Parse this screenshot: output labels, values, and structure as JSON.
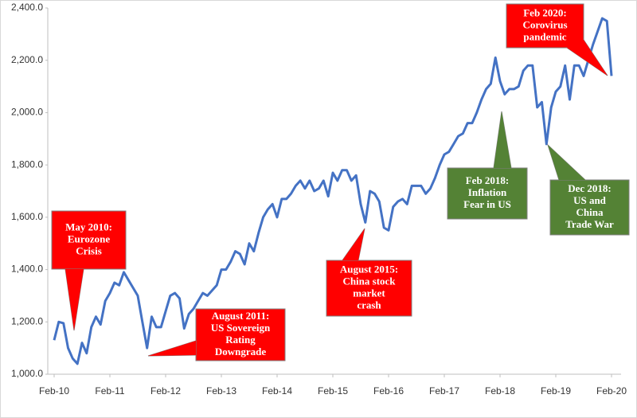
{
  "chart_data": {
    "type": "line",
    "categories": [
      "Feb-10",
      null,
      null,
      null,
      null,
      null,
      null,
      null,
      null,
      null,
      null,
      null,
      "Feb-11",
      null,
      null,
      null,
      null,
      null,
      null,
      null,
      null,
      null,
      null,
      null,
      "Feb-12",
      null,
      null,
      null,
      null,
      null,
      null,
      null,
      null,
      null,
      null,
      null,
      "Feb-13",
      null,
      null,
      null,
      null,
      null,
      null,
      null,
      null,
      null,
      null,
      null,
      "Feb-14",
      null,
      null,
      null,
      null,
      null,
      null,
      null,
      null,
      null,
      null,
      null,
      "Feb-15",
      null,
      null,
      null,
      null,
      null,
      null,
      null,
      null,
      null,
      null,
      null,
      "Feb-16",
      null,
      null,
      null,
      null,
      null,
      null,
      null,
      null,
      null,
      null,
      null,
      "Feb-17",
      null,
      null,
      null,
      null,
      null,
      null,
      null,
      null,
      null,
      null,
      null,
      "Feb-18",
      null,
      null,
      null,
      null,
      null,
      null,
      null,
      null,
      null,
      null,
      null,
      "Feb-19",
      null,
      null,
      null,
      null,
      null,
      null,
      null,
      null,
      null,
      null,
      null,
      "Feb-20"
    ],
    "values": [
      1130,
      1200,
      1195,
      1100,
      1060,
      1040,
      1120,
      1080,
      1180,
      1220,
      1190,
      1280,
      1310,
      1350,
      1340,
      1390,
      1360,
      1330,
      1300,
      1200,
      1100,
      1220,
      1180,
      1180,
      1240,
      1300,
      1310,
      1290,
      1175,
      1230,
      1250,
      1280,
      1310,
      1300,
      1320,
      1340,
      1400,
      1400,
      1430,
      1470,
      1460,
      1420,
      1500,
      1470,
      1540,
      1600,
      1630,
      1650,
      1600,
      1670,
      1670,
      1690,
      1720,
      1740,
      1710,
      1740,
      1700,
      1710,
      1740,
      1680,
      1770,
      1740,
      1780,
      1780,
      1740,
      1760,
      1650,
      1580,
      1700,
      1690,
      1660,
      1560,
      1550,
      1640,
      1660,
      1670,
      1650,
      1720,
      1720,
      1720,
      1690,
      1710,
      1750,
      1800,
      1840,
      1850,
      1880,
      1910,
      1920,
      1960,
      1960,
      2000,
      2050,
      2090,
      2110,
      2210,
      2120,
      2070,
      2090,
      2090,
      2100,
      2160,
      2180,
      2180,
      2020,
      2040,
      1880,
      2020,
      2080,
      2100,
      2180,
      2050,
      2180,
      2180,
      2140,
      2200,
      2260,
      2310,
      2360,
      2350,
      2140
    ],
    "color": "#4472c4",
    "ylim": [
      1000,
      2400
    ],
    "yticks": [
      {
        "value": 1000,
        "label": "1,000.0"
      },
      {
        "value": 1200,
        "label": "1,200.0"
      },
      {
        "value": 1400,
        "label": "1,400.0"
      },
      {
        "value": 1600,
        "label": "1,600.0"
      },
      {
        "value": 1800,
        "label": "1,800.0"
      },
      {
        "value": 2000,
        "label": "2,000.0"
      },
      {
        "value": 2200,
        "label": "2,200.0"
      },
      {
        "value": 2400,
        "label": "2,400.0"
      }
    ],
    "grid": false,
    "annotations": [
      {
        "lines": [
          "May 2010:",
          "Eurozone",
          "Crisis"
        ],
        "color": "#ff0000"
      },
      {
        "lines": [
          "August 2011:",
          "US Sovereign",
          "Rating",
          "Downgrade"
        ],
        "color": "#ff0000"
      },
      {
        "lines": [
          "August 2015:",
          "China stock",
          "market",
          "crash"
        ],
        "color": "#ff0000"
      },
      {
        "lines": [
          "Feb 2018:",
          "Inflation",
          "Fear in US"
        ],
        "color": "#548235"
      },
      {
        "lines": [
          "Dec 2018:",
          "US and",
          "China",
          "Trade War"
        ],
        "color": "#548235"
      },
      {
        "lines": [
          "Feb 2020:",
          "Corovirus",
          "pandemic"
        ],
        "color": "#ff0000"
      }
    ]
  }
}
